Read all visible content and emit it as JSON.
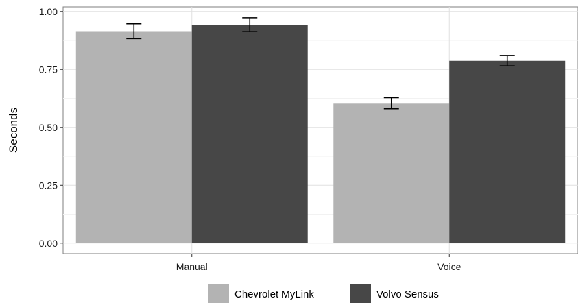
{
  "chart_data": {
    "type": "bar",
    "title": "",
    "xlabel": "",
    "ylabel": "Seconds",
    "ylim": [
      -0.045,
      1.02
    ],
    "yticks": [
      "0.00",
      "0.25",
      "0.50",
      "0.75",
      "1.00"
    ],
    "categories": [
      "Manual",
      "Voice"
    ],
    "series": [
      {
        "name": "Chevrolet MyLink",
        "color": "#b3b3b3",
        "values": [
          0.915,
          0.605
        ],
        "err_low": [
          0.883,
          0.58
        ],
        "err_high": [
          0.947,
          0.628
        ]
      },
      {
        "name": "Volvo Sensus",
        "color": "#474747",
        "values": [
          0.943,
          0.787
        ],
        "err_low": [
          0.913,
          0.765
        ],
        "err_high": [
          0.973,
          0.81
        ]
      }
    ],
    "grid": true,
    "legend": "bottom",
    "error_bars": true
  }
}
